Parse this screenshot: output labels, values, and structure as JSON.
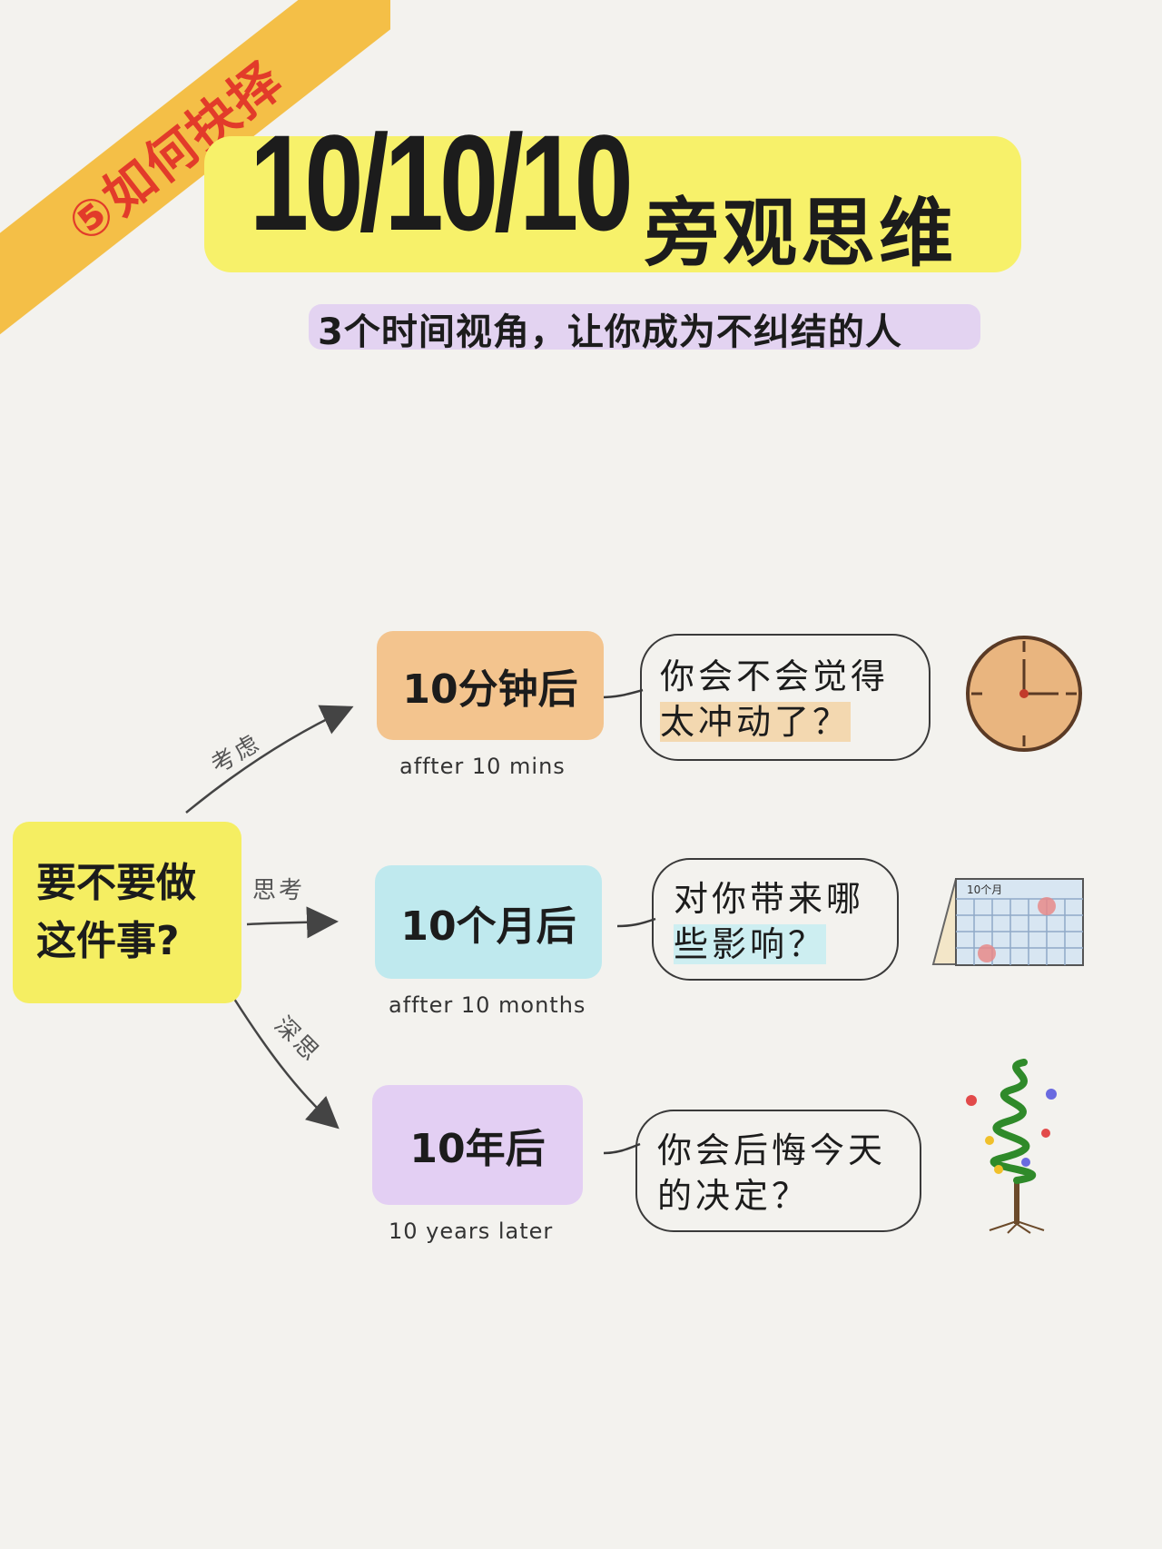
{
  "corner_tag": "⑤如何抉择",
  "title": {
    "number": "10/10/10",
    "text": "旁观思维"
  },
  "subtitle": "3个时间视角，让你成为不纠结的人",
  "question": {
    "line1": "要不要做",
    "line2": "这件事?"
  },
  "arrow_labels": [
    "考虑",
    "思考",
    "深思"
  ],
  "branches": [
    {
      "label": "10分钟后",
      "english": "affter 10 mins",
      "bubble_line1": "你会不会觉得",
      "bubble_line2": "太冲动了？",
      "color": "#f3c48e",
      "icon": "clock-icon"
    },
    {
      "label": "10个月后",
      "english": "affter 10 months",
      "bubble_line1": "对你带来哪",
      "bubble_line2": "些影响？",
      "color": "#bfe9ee",
      "icon": "calendar-icon"
    },
    {
      "label": "10年后",
      "english": "10 years later",
      "bubble_line1": "你会后悔今天",
      "bubble_line2": "的决定？",
      "color": "#e3cff3",
      "icon": "tree-icon"
    }
  ],
  "calendar_label": "10个月",
  "colors": {
    "ribbon": "#f4bf47",
    "title_highlight": "#f7f16a",
    "question_box": "#f5ee62"
  }
}
